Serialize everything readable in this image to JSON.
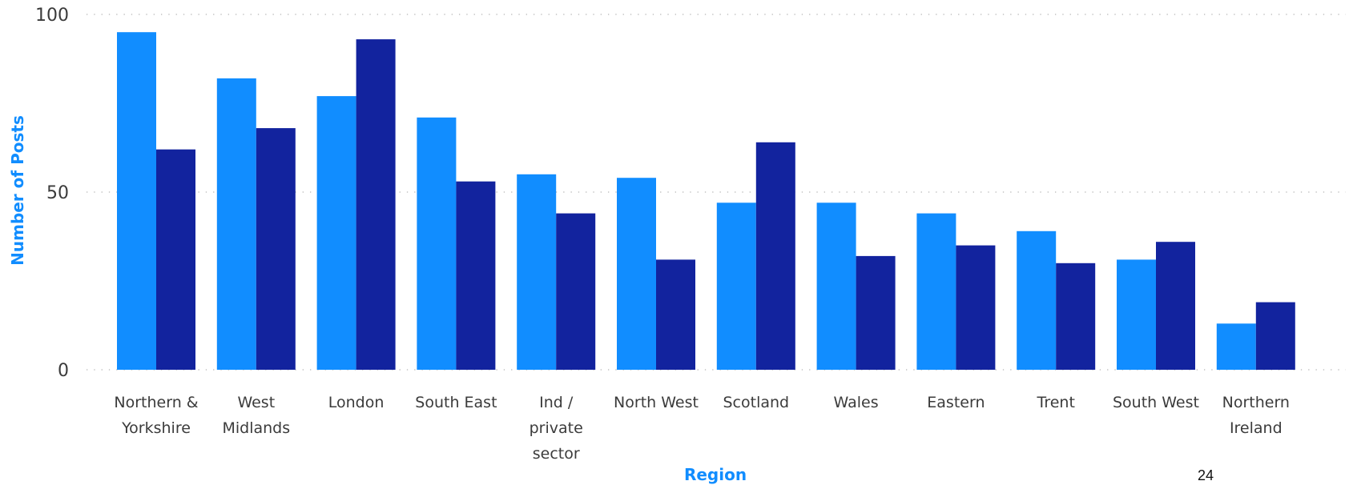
{
  "chart_data": {
    "type": "bar",
    "categories": [
      [
        "Northern &",
        "Yorkshire"
      ],
      [
        "West",
        "Midlands"
      ],
      [
        "London"
      ],
      [
        "South East"
      ],
      [
        "Ind /",
        "private",
        "sector"
      ],
      [
        "North West"
      ],
      [
        "Scotland"
      ],
      [
        "Wales"
      ],
      [
        "Eastern"
      ],
      [
        "Trent"
      ],
      [
        "South West"
      ],
      [
        "Northern",
        "Ireland"
      ]
    ],
    "series": [
      {
        "color": "#118DFF",
        "values": [
          95,
          82,
          77,
          71,
          55,
          54,
          47,
          47,
          44,
          39,
          31,
          13
        ]
      },
      {
        "color": "#12239E",
        "values": [
          62,
          68,
          93,
          53,
          44,
          31,
          64,
          32,
          35,
          30,
          36,
          19
        ]
      }
    ],
    "xlabel": "Region",
    "ylabel": "Number of Posts",
    "ylim": [
      0,
      100
    ],
    "yticks": [
      "0",
      "50",
      "100"
    ],
    "grid": true,
    "axis_title_color": "#118DFF"
  },
  "page_number": "24"
}
